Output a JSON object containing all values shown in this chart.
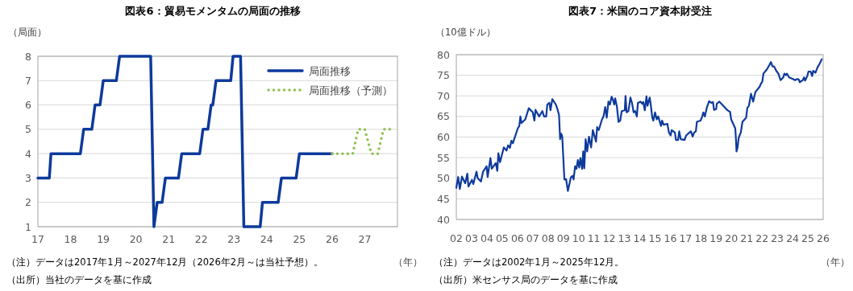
{
  "chart_data": [
    {
      "type": "line",
      "title": "図表6：貿易モメンタムの局面の推移",
      "ylabel": "（局面）",
      "xlabel": "（年）",
      "xlim": [
        2017,
        2028
      ],
      "xticks": [
        {
          "value": 2017,
          "label": "17"
        },
        {
          "value": 2018,
          "label": "18"
        },
        {
          "value": 2019,
          "label": "19"
        },
        {
          "value": 2020,
          "label": "20"
        },
        {
          "value": 2021,
          "label": "21"
        },
        {
          "value": 2022,
          "label": "22"
        },
        {
          "value": 2023,
          "label": "23"
        },
        {
          "value": 2024,
          "label": "24"
        },
        {
          "value": 2025,
          "label": "25"
        },
        {
          "value": 2026,
          "label": "26"
        },
        {
          "value": 2027,
          "label": "27"
        }
      ],
      "ylim": [
        1,
        8
      ],
      "yticks": [
        1,
        2,
        3,
        4,
        5,
        6,
        7,
        8
      ],
      "grid": "y",
      "legend": "top right",
      "series": [
        {
          "name": "局面推移",
          "color": "#0e3a9c",
          "line_style": "solid",
          "x": [
            2017,
            2017.35,
            2017.4,
            2018.3,
            2018.4,
            2018.65,
            2018.75,
            2018.9,
            2019.0,
            2019.4,
            2019.5,
            2020.45,
            2020.55,
            2020.65,
            2020.8,
            2020.9,
            2021.3,
            2021.4,
            2021.95,
            2022.05,
            2022.2,
            2022.3,
            2022.35,
            2022.45,
            2022.9,
            2022.97,
            2023.2,
            2023.3,
            2023.8,
            2023.87,
            2024.35,
            2024.45,
            2024.9,
            2025.0,
            2026.0
          ],
          "values": [
            3,
            3,
            4,
            4,
            5,
            5,
            6,
            6,
            7,
            7,
            8,
            8,
            1,
            2,
            2,
            3,
            3,
            4,
            4,
            5,
            5,
            6,
            6,
            7,
            7,
            8,
            8,
            1,
            1,
            2,
            2,
            3,
            3,
            4,
            4
          ]
        },
        {
          "name": "局面推移（予測）",
          "color": "#92c050",
          "line_style": "dotted",
          "x": [
            2026.0,
            2026.63,
            2026.8,
            2027.0,
            2027.2,
            2027.4,
            2027.57,
            2027.9
          ],
          "values": [
            4,
            4,
            5,
            5,
            4,
            4,
            5,
            5
          ]
        }
      ],
      "annotations": [
        "（注）データは2017年1月～2027年12月（2026年2月～は当社予想）。",
        "（出所）当社のデータを基に作成"
      ]
    },
    {
      "type": "line",
      "title": "図表7：米国のコア資本財受注",
      "ylabel": "（10億ドル）",
      "xlabel": "（年）",
      "xlim": [
        2002,
        2026
      ],
      "xticks": [
        {
          "value": 2002,
          "label": "02"
        },
        {
          "value": 2003,
          "label": "03"
        },
        {
          "value": 2004,
          "label": "04"
        },
        {
          "value": 2005,
          "label": "05"
        },
        {
          "value": 2006,
          "label": "06"
        },
        {
          "value": 2007,
          "label": "07"
        },
        {
          "value": 2008,
          "label": "08"
        },
        {
          "value": 2009,
          "label": "09"
        },
        {
          "value": 2010,
          "label": "10"
        },
        {
          "value": 2011,
          "label": "11"
        },
        {
          "value": 2012,
          "label": "12"
        },
        {
          "value": 2013,
          "label": "13"
        },
        {
          "value": 2014,
          "label": "14"
        },
        {
          "value": 2015,
          "label": "15"
        },
        {
          "value": 2016,
          "label": "16"
        },
        {
          "value": 2017,
          "label": "17"
        },
        {
          "value": 2018,
          "label": "18"
        },
        {
          "value": 2019,
          "label": "19"
        },
        {
          "value": 2020,
          "label": "20"
        },
        {
          "value": 2021,
          "label": "21"
        },
        {
          "value": 2022,
          "label": "22"
        },
        {
          "value": 2023,
          "label": "23"
        },
        {
          "value": 2024,
          "label": "24"
        },
        {
          "value": 2025,
          "label": "25"
        },
        {
          "value": 2026,
          "label": "26"
        }
      ],
      "ylim": [
        40,
        80
      ],
      "yticks": [
        40,
        45,
        50,
        55,
        60,
        65,
        70,
        75,
        80
      ],
      "grid": "y",
      "series": [
        {
          "color": "#0e3a9c",
          "line_style": "solid",
          "x": [
            2002.0,
            2002.12,
            2002.23,
            2002.37,
            2002.58,
            2002.72,
            2002.79,
            2003.02,
            2003.11,
            2003.32,
            2003.4,
            2003.61,
            2003.75,
            2003.98,
            2004.05,
            2004.23,
            2004.32,
            2004.58,
            2004.68,
            2004.75,
            2004.86,
            2005.11,
            2005.28,
            2005.39,
            2005.51,
            2005.6,
            2005.7,
            2006.02,
            2006.12,
            2006.19,
            2006.26,
            2006.51,
            2006.74,
            2007.0,
            2007.11,
            2007.18,
            2007.42,
            2007.63,
            2007.74,
            2007.88,
            2007.95,
            2008.09,
            2008.16,
            2008.28,
            2008.51,
            2008.63,
            2008.72,
            2008.79,
            2008.86,
            2008.93,
            2009.07,
            2009.18,
            2009.3,
            2009.49,
            2009.6,
            2009.67,
            2009.77,
            2009.86,
            2009.95,
            2010.04,
            2010.12,
            2010.23,
            2010.3,
            2010.37,
            2010.46,
            2010.56,
            2010.68,
            2010.82,
            2010.93,
            2011.14,
            2011.21,
            2011.32,
            2011.53,
            2011.63,
            2011.74,
            2011.84,
            2011.95,
            2012.05,
            2012.16,
            2012.26,
            2012.33,
            2012.39,
            2012.51,
            2012.61,
            2012.72,
            2012.82,
            2013.02,
            2013.07,
            2013.14,
            2013.26,
            2013.39,
            2013.49,
            2013.6,
            2013.7,
            2013.81,
            2013.88,
            2014.05,
            2014.16,
            2014.23,
            2014.33,
            2014.44,
            2014.51,
            2014.65,
            2014.72,
            2014.82,
            2014.89,
            2015.0,
            2015.11,
            2015.21,
            2015.39,
            2015.46,
            2015.56,
            2015.81,
            2015.91,
            2016.02,
            2016.09,
            2016.3,
            2016.37,
            2016.51,
            2016.58,
            2016.68,
            2016.93,
            2017.04,
            2017.25,
            2017.35,
            2017.46,
            2017.56,
            2017.67,
            2017.74,
            2017.98,
            2018.09,
            2018.16,
            2018.26,
            2018.4,
            2018.54,
            2018.68,
            2018.79,
            2018.86,
            2019.0,
            2019.04,
            2019.21,
            2019.46,
            2019.74,
            2019.91,
            2019.98,
            2020.25,
            2020.3,
            2020.33,
            2020.4,
            2020.47,
            2020.61,
            2020.72,
            2020.96,
            2021.04,
            2021.14,
            2021.28,
            2021.42,
            2021.56,
            2021.84,
            2021.91,
            2022.02,
            2022.09,
            2022.33,
            2022.47,
            2022.58,
            2022.68,
            2022.79,
            2022.93,
            2023.07,
            2023.21,
            2023.39,
            2023.46,
            2023.56,
            2023.63,
            2023.77,
            2024.02,
            2024.16,
            2024.3,
            2024.4,
            2024.47,
            2024.68,
            2024.75,
            2024.82,
            2024.96,
            2025.04,
            2025.18,
            2025.28,
            2025.35,
            2025.49,
            2025.63,
            2025.77,
            2025.91
          ],
          "values": [
            47.7,
            50.3,
            47.4,
            50.4,
            48.8,
            51.1,
            48.0,
            49.6,
            48.6,
            51.6,
            50.0,
            49.2,
            51.6,
            52.9,
            50.3,
            54.9,
            52.3,
            53.7,
            51.8,
            56.1,
            53.9,
            57.5,
            56.7,
            58.0,
            57.4,
            59.1,
            58.5,
            62.1,
            62.7,
            65.0,
            63.4,
            64.3,
            67.0,
            66.0,
            64.0,
            66.6,
            65.0,
            66.3,
            65.0,
            65.0,
            67.9,
            68.3,
            66.5,
            69.2,
            67.9,
            66.6,
            65.3,
            59.5,
            60.8,
            60.1,
            49.7,
            49.8,
            46.9,
            50.2,
            50.6,
            49.7,
            52.9,
            52.3,
            54.4,
            52.6,
            54.9,
            52.3,
            56.5,
            52.4,
            59.5,
            56.5,
            60.1,
            57.5,
            61.7,
            58.9,
            62.4,
            61.7,
            64.3,
            65.0,
            67.3,
            64.7,
            68.6,
            67.9,
            69.8,
            68.9,
            67.9,
            69.4,
            67.3,
            63.7,
            64.0,
            66.3,
            66.5,
            70.0,
            66.0,
            66.3,
            69.6,
            68.3,
            66.0,
            66.3,
            65.0,
            68.3,
            68.6,
            68.1,
            68.5,
            66.5,
            69.9,
            67.6,
            69.6,
            67.9,
            64.7,
            64.0,
            66.0,
            64.3,
            65.0,
            62.7,
            64.0,
            63.0,
            63.2,
            61.1,
            60.4,
            61.7,
            61.1,
            59.3,
            59.3,
            61.4,
            59.5,
            59.3,
            60.4,
            61.1,
            61.4,
            60.1,
            61.1,
            61.4,
            63.7,
            64.0,
            65.0,
            66.0,
            65.0,
            67.3,
            68.7,
            68.3,
            68.5,
            66.6,
            66.8,
            68.1,
            68.6,
            67.6,
            66.5,
            66.1,
            64.3,
            62.1,
            59.1,
            56.5,
            57.5,
            59.8,
            61.1,
            63.7,
            64.7,
            67.1,
            67.6,
            70.5,
            68.6,
            70.9,
            72.2,
            72.8,
            73.5,
            75.4,
            76.5,
            77.4,
            78.2,
            77.2,
            77.1,
            76.1,
            75.4,
            73.8,
            74.5,
            75.4,
            75.0,
            75.4,
            74.5,
            74.1,
            73.8,
            74.1,
            74.0,
            73.3,
            73.9,
            74.5,
            73.7,
            74.8,
            75.9,
            75.9,
            74.8,
            76.1,
            75.6,
            76.9,
            77.8,
            78.9
          ]
        }
      ],
      "annotations": [
        "（注）データは2002年1月～2025年12月。",
        "（出所）米センサス局のデータを基に作成"
      ]
    }
  ]
}
